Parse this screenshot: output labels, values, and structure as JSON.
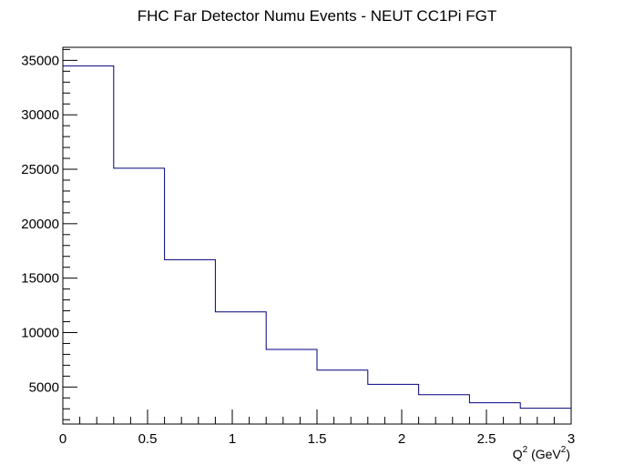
{
  "chart_data": {
    "type": "step-histogram",
    "title": "FHC Far Detector Numu Events - NEUT CC1Pi FGT",
    "xlabel": {
      "base": "Q",
      "sup1": "2",
      "mid": " (GeV",
      "sup2": "2",
      "end": ")"
    },
    "ylabel": "",
    "xlim": [
      0,
      3
    ],
    "ylim": [
      1600,
      36200
    ],
    "x_ticks": [
      0,
      0.5,
      1,
      1.5,
      2,
      2.5,
      3
    ],
    "x_tick_labels": [
      "0",
      "0.5",
      "1",
      "1.5",
      "2",
      "2.5",
      "3"
    ],
    "y_ticks": [
      5000,
      10000,
      15000,
      20000,
      25000,
      30000,
      35000
    ],
    "y_tick_labels": [
      "5000",
      "10000",
      "15000",
      "20000",
      "25000",
      "30000",
      "35000"
    ],
    "bin_edges": [
      0,
      0.3,
      0.6,
      0.9,
      1.2,
      1.5,
      1.8,
      2.1,
      2.4,
      2.7,
      3.0
    ],
    "values": [
      34500,
      25100,
      16700,
      11900,
      8450,
      6550,
      5250,
      4300,
      3550,
      3050
    ],
    "line_color": "#000080",
    "grid": false
  }
}
